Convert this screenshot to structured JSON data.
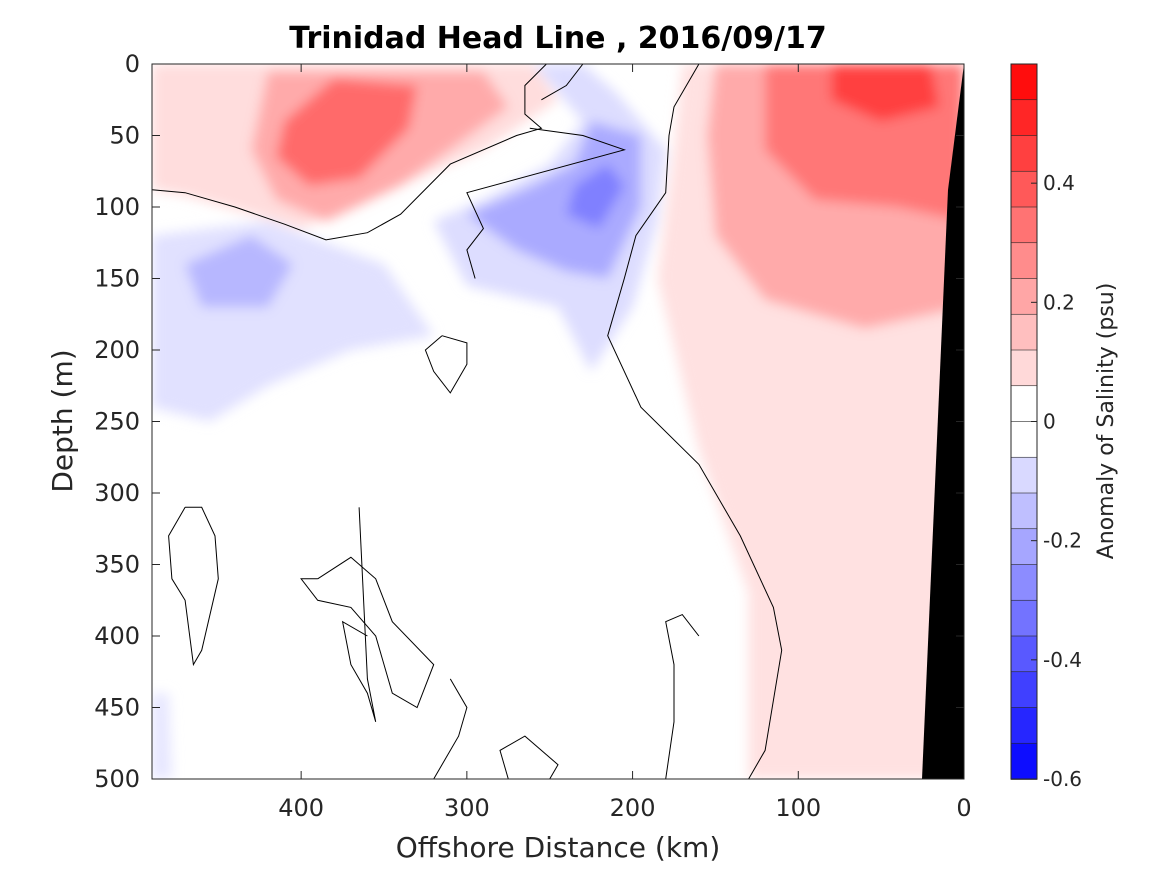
{
  "chart_data": {
    "type": "contour",
    "title": "Trinidad Head Line , 2016/09/17",
    "xlabel": "Offshore Distance (km)",
    "ylabel": "Depth (m)",
    "xlim": [
      490,
      0
    ],
    "ylim": [
      0,
      500
    ],
    "x_reversed": true,
    "y_reversed": true,
    "xticks": [
      400,
      300,
      200,
      100,
      0
    ],
    "yticks": [
      0,
      50,
      100,
      150,
      200,
      250,
      300,
      350,
      400,
      450,
      500
    ],
    "colorbar": {
      "label": "Anomaly of Salinity (psu)",
      "ticks": [
        0.4,
        0.2,
        0,
        -0.2,
        -0.4,
        -0.6
      ],
      "range": [
        -0.6,
        0.6
      ],
      "levels": 20,
      "colormap": "blue-white-red"
    },
    "features": [
      {
        "kind": "positive anomaly",
        "label": "red core",
        "x": 385,
        "depth": 70,
        "value": 0.4
      },
      {
        "kind": "positive anomaly",
        "label": "red core",
        "x": 365,
        "depth": 20,
        "value": 0.35
      },
      {
        "kind": "positive anomaly",
        "label": "red nearshore core",
        "x": 50,
        "depth": 10,
        "value": 0.45
      },
      {
        "kind": "negative anomaly",
        "label": "blue core",
        "x": 230,
        "depth": 95,
        "value": -0.3
      },
      {
        "kind": "negative anomaly",
        "label": "blue lobe",
        "x": 450,
        "depth": 150,
        "value": -0.15
      },
      {
        "kind": "zero contour",
        "label": "0 psu line"
      },
      {
        "kind": "bathymetry",
        "label": "continental shelf (black)"
      }
    ]
  },
  "colors": {
    "neg_max": "#0000ff",
    "zero": "#ffffff",
    "pos_max": "#ff0000",
    "shelf": "#000000"
  }
}
